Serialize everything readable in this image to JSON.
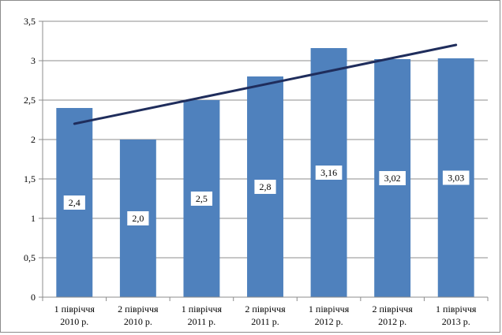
{
  "chart_data": {
    "type": "bar",
    "categories": [
      [
        "1 півріччя",
        "2010 р."
      ],
      [
        "2 півріччя",
        "2010 р."
      ],
      [
        "1 півріччя",
        "2011 р."
      ],
      [
        "2 півріччя",
        "2011 р."
      ],
      [
        "1 півріччя",
        "2012 р."
      ],
      [
        "2 півріччя",
        "2012 р."
      ],
      [
        "1 півріччя",
        "2013 р."
      ]
    ],
    "values": [
      2.4,
      2.0,
      2.5,
      2.8,
      3.16,
      3.02,
      3.03
    ],
    "data_labels": [
      "2,4",
      "2,0",
      "2,5",
      "2,8",
      "3,16",
      "3,02",
      "3,03"
    ],
    "y_ticks": [
      {
        "value": 0,
        "label": "0"
      },
      {
        "value": 0.5,
        "label": "0,5"
      },
      {
        "value": 1,
        "label": "1"
      },
      {
        "value": 1.5,
        "label": "1,5"
      },
      {
        "value": 2,
        "label": "2"
      },
      {
        "value": 2.5,
        "label": "2,5"
      },
      {
        "value": 3,
        "label": "3"
      },
      {
        "value": 3.5,
        "label": "3,5"
      }
    ],
    "ylim": [
      0,
      3.5
    ],
    "trendline": {
      "type": "linear",
      "start_value": 2.2,
      "end_value": 3.2,
      "color": "#1f2d5c"
    },
    "bar_color": "#4f81bd",
    "grid": true,
    "legend": "none",
    "title": "",
    "xlabel": "",
    "ylabel": ""
  }
}
